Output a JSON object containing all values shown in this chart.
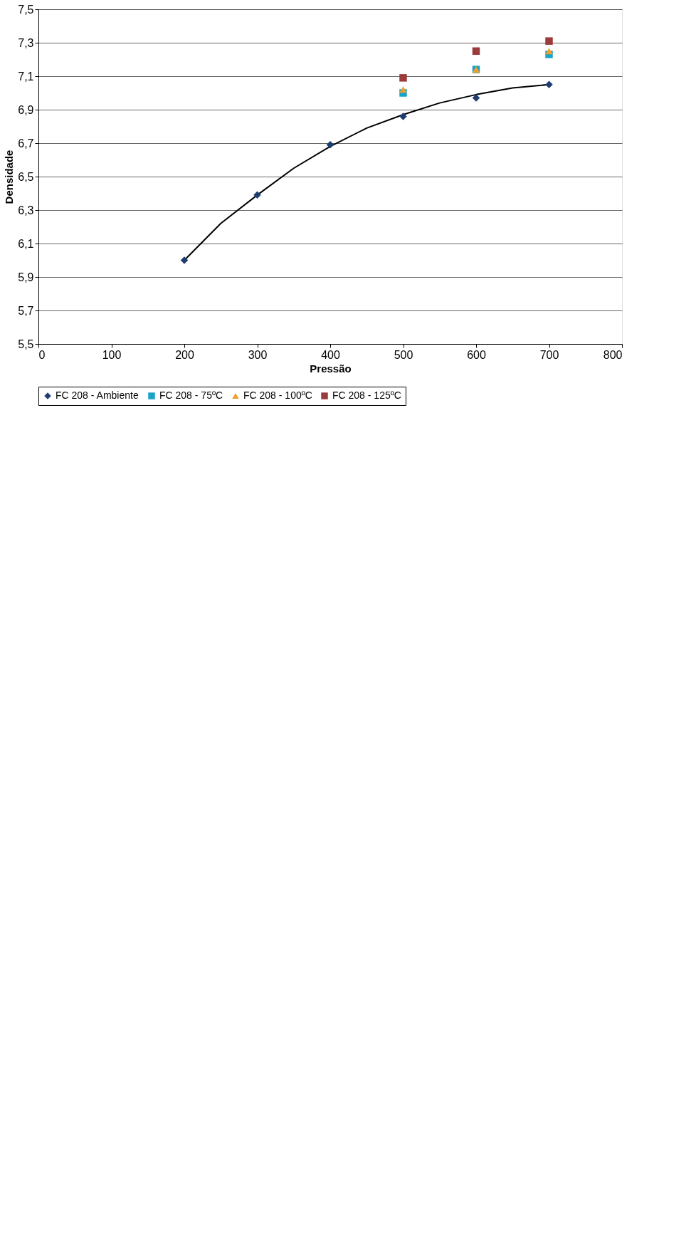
{
  "chart_data": {
    "type": "scatter",
    "xlabel": "Pressão",
    "ylabel": "Densidade",
    "xlim": [
      0,
      800
    ],
    "xticks": [
      0,
      100,
      200,
      300,
      400,
      500,
      600,
      700,
      800
    ],
    "ylim": [
      5.5,
      7.5
    ],
    "yticks": [
      {
        "value": 5.5,
        "label": "5,5"
      },
      {
        "value": 5.7,
        "label": "5,7"
      },
      {
        "value": 5.9,
        "label": "5,9"
      },
      {
        "value": 6.1,
        "label": "6,1"
      },
      {
        "value": 6.3,
        "label": "6,3"
      },
      {
        "value": 6.5,
        "label": "6,5"
      },
      {
        "value": 6.7,
        "label": "6,7"
      },
      {
        "value": 6.9,
        "label": "6,9"
      },
      {
        "value": 7.1,
        "label": "7,1"
      },
      {
        "value": 7.3,
        "label": "7,3"
      },
      {
        "value": 7.5,
        "label": "7,5"
      }
    ],
    "grid": "y",
    "legend": "bottom",
    "series": [
      {
        "name": "FC 208 - Ambiente",
        "color": "#1f3d6e",
        "marker": "diamond",
        "x": [
          200,
          300,
          400,
          500,
          600,
          700
        ],
        "values": [
          6.0,
          6.39,
          6.69,
          6.86,
          6.97,
          7.05
        ]
      },
      {
        "name": "FC 208 - 75ºC",
        "color": "#1aa3c8",
        "marker": "square",
        "x": [
          500,
          600,
          700
        ],
        "values": [
          7.0,
          7.14,
          7.23
        ]
      },
      {
        "name": "FC 208 - 100ºC",
        "color": "#f0a030",
        "marker": "triangle",
        "x": [
          500,
          600,
          700
        ],
        "values": [
          7.02,
          7.14,
          7.25
        ]
      },
      {
        "name": "FC 208 - 125ºC",
        "color": "#9b3b3b",
        "marker": "square",
        "x": [
          500,
          600,
          700
        ],
        "values": [
          7.09,
          7.25,
          7.31
        ]
      },
      {
        "type": "line",
        "color": "#000000",
        "marker": "none",
        "line_style": "solid",
        "x": [
          200,
          250,
          300,
          350,
          400,
          450,
          500,
          550,
          600,
          650,
          700
        ],
        "values": [
          6.0,
          6.22,
          6.39,
          6.55,
          6.68,
          6.79,
          6.87,
          6.94,
          6.99,
          7.03,
          7.05
        ]
      }
    ]
  }
}
